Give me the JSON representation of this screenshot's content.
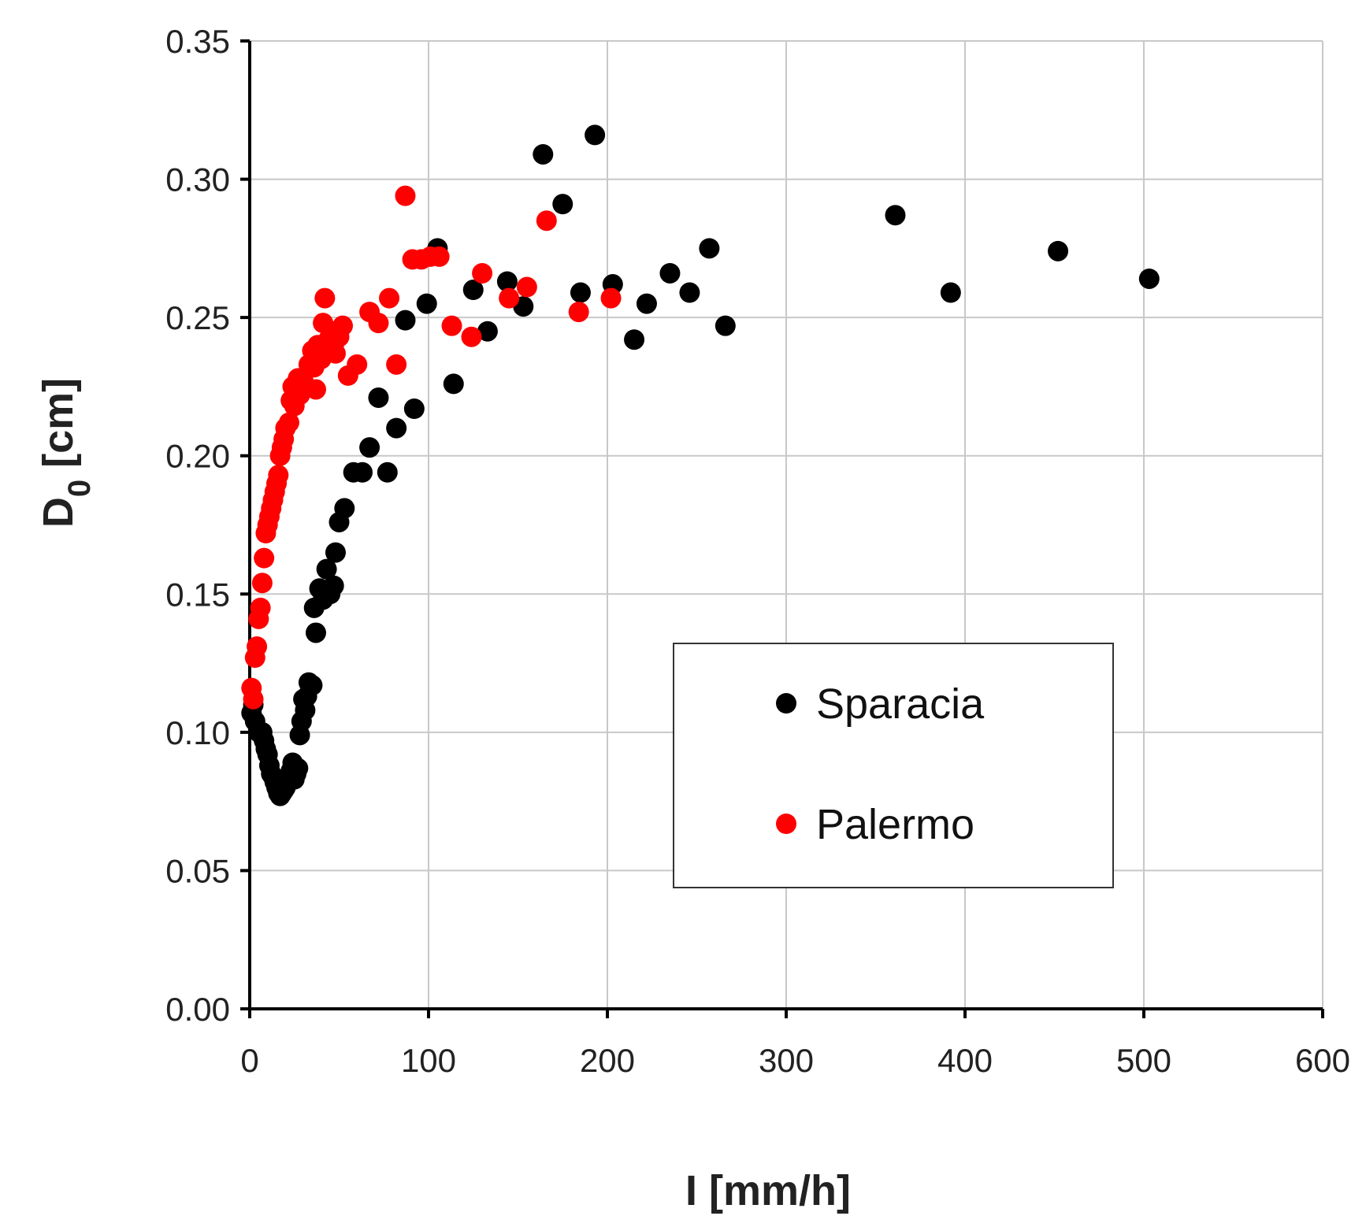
{
  "chart_data": {
    "type": "scatter",
    "title": "",
    "xlabel": "I [mm/h]",
    "ylabel_main": "D",
    "ylabel_sub": "0",
    "ylabel_unit": " [cm]",
    "xlim": [
      0,
      600
    ],
    "ylim": [
      0,
      0.35
    ],
    "xticks": [
      0,
      100,
      200,
      300,
      400,
      500,
      600
    ],
    "yticks": [
      0.0,
      0.05,
      0.1,
      0.15,
      0.2,
      0.25,
      0.3,
      0.35
    ],
    "xtick_labels": [
      "0",
      "100",
      "200",
      "300",
      "400",
      "500",
      "600"
    ],
    "ytick_labels": [
      "0.00",
      "0.05",
      "0.10",
      "0.15",
      "0.20",
      "0.25",
      "0.30",
      "0.35"
    ],
    "grid": true,
    "legend_position": "center-right",
    "series": [
      {
        "name": "Sparacia",
        "color": "#000000",
        "points": [
          [
            1,
            0.107
          ],
          [
            2,
            0.11
          ],
          [
            3,
            0.104
          ],
          [
            5,
            0.1
          ],
          [
            7,
            0.1
          ],
          [
            8,
            0.097
          ],
          [
            9,
            0.094
          ],
          [
            10,
            0.092
          ],
          [
            11,
            0.088
          ],
          [
            12,
            0.085
          ],
          [
            13,
            0.084
          ],
          [
            14,
            0.082
          ],
          [
            15,
            0.08
          ],
          [
            16,
            0.078
          ],
          [
            17,
            0.077
          ],
          [
            18,
            0.078
          ],
          [
            19,
            0.079
          ],
          [
            20,
            0.08
          ],
          [
            21,
            0.082
          ],
          [
            22,
            0.084
          ],
          [
            23,
            0.086
          ],
          [
            24,
            0.089
          ],
          [
            25,
            0.083
          ],
          [
            26,
            0.085
          ],
          [
            27,
            0.087
          ],
          [
            28,
            0.099
          ],
          [
            29,
            0.104
          ],
          [
            30,
            0.112
          ],
          [
            31,
            0.108
          ],
          [
            32,
            0.113
          ],
          [
            33,
            0.118
          ],
          [
            35,
            0.117
          ],
          [
            36,
            0.145
          ],
          [
            37,
            0.136
          ],
          [
            39,
            0.152
          ],
          [
            41,
            0.148
          ],
          [
            43,
            0.159
          ],
          [
            45,
            0.15
          ],
          [
            47,
            0.153
          ],
          [
            48,
            0.165
          ],
          [
            50,
            0.176
          ],
          [
            53,
            0.181
          ],
          [
            58,
            0.194
          ],
          [
            63,
            0.194
          ],
          [
            67,
            0.203
          ],
          [
            72,
            0.221
          ],
          [
            77,
            0.194
          ],
          [
            82,
            0.21
          ],
          [
            87,
            0.249
          ],
          [
            92,
            0.217
          ],
          [
            99,
            0.255
          ],
          [
            105,
            0.275
          ],
          [
            114,
            0.226
          ],
          [
            125,
            0.26
          ],
          [
            133,
            0.245
          ],
          [
            144,
            0.263
          ],
          [
            153,
            0.254
          ],
          [
            164,
            0.309
          ],
          [
            175,
            0.291
          ],
          [
            185,
            0.259
          ],
          [
            193,
            0.316
          ],
          [
            203,
            0.262
          ],
          [
            215,
            0.242
          ],
          [
            222,
            0.255
          ],
          [
            235,
            0.266
          ],
          [
            246,
            0.259
          ],
          [
            257,
            0.275
          ],
          [
            266,
            0.247
          ],
          [
            361,
            0.287
          ],
          [
            392,
            0.259
          ],
          [
            452,
            0.274
          ],
          [
            503,
            0.264
          ]
        ]
      },
      {
        "name": "Palermo",
        "color": "#ff0000",
        "points": [
          [
            1,
            0.116
          ],
          [
            2,
            0.112
          ],
          [
            3,
            0.127
          ],
          [
            4,
            0.131
          ],
          [
            5,
            0.141
          ],
          [
            6,
            0.145
          ],
          [
            7,
            0.154
          ],
          [
            8,
            0.163
          ],
          [
            9,
            0.172
          ],
          [
            10,
            0.175
          ],
          [
            11,
            0.178
          ],
          [
            12,
            0.181
          ],
          [
            13,
            0.184
          ],
          [
            14,
            0.187
          ],
          [
            15,
            0.19
          ],
          [
            16,
            0.193
          ],
          [
            17,
            0.2
          ],
          [
            18,
            0.203
          ],
          [
            19,
            0.206
          ],
          [
            20,
            0.21
          ],
          [
            22,
            0.212
          ],
          [
            23,
            0.22
          ],
          [
            24,
            0.225
          ],
          [
            25,
            0.218
          ],
          [
            26,
            0.224
          ],
          [
            27,
            0.228
          ],
          [
            28,
            0.222
          ],
          [
            30,
            0.227
          ],
          [
            33,
            0.233
          ],
          [
            35,
            0.238
          ],
          [
            36,
            0.232
          ],
          [
            37,
            0.224
          ],
          [
            38,
            0.24
          ],
          [
            40,
            0.235
          ],
          [
            41,
            0.248
          ],
          [
            42,
            0.257
          ],
          [
            44,
            0.242
          ],
          [
            46,
            0.245
          ],
          [
            47,
            0.24
          ],
          [
            48,
            0.237
          ],
          [
            50,
            0.243
          ],
          [
            52,
            0.247
          ],
          [
            55,
            0.229
          ],
          [
            60,
            0.233
          ],
          [
            67,
            0.252
          ],
          [
            72,
            0.248
          ],
          [
            78,
            0.257
          ],
          [
            82,
            0.233
          ],
          [
            87,
            0.294
          ],
          [
            91,
            0.271
          ],
          [
            96,
            0.271
          ],
          [
            101,
            0.272
          ],
          [
            106,
            0.272
          ],
          [
            113,
            0.247
          ],
          [
            124,
            0.243
          ],
          [
            130,
            0.266
          ],
          [
            145,
            0.257
          ],
          [
            155,
            0.261
          ],
          [
            166,
            0.285
          ],
          [
            184,
            0.252
          ],
          [
            202,
            0.257
          ]
        ]
      }
    ]
  }
}
